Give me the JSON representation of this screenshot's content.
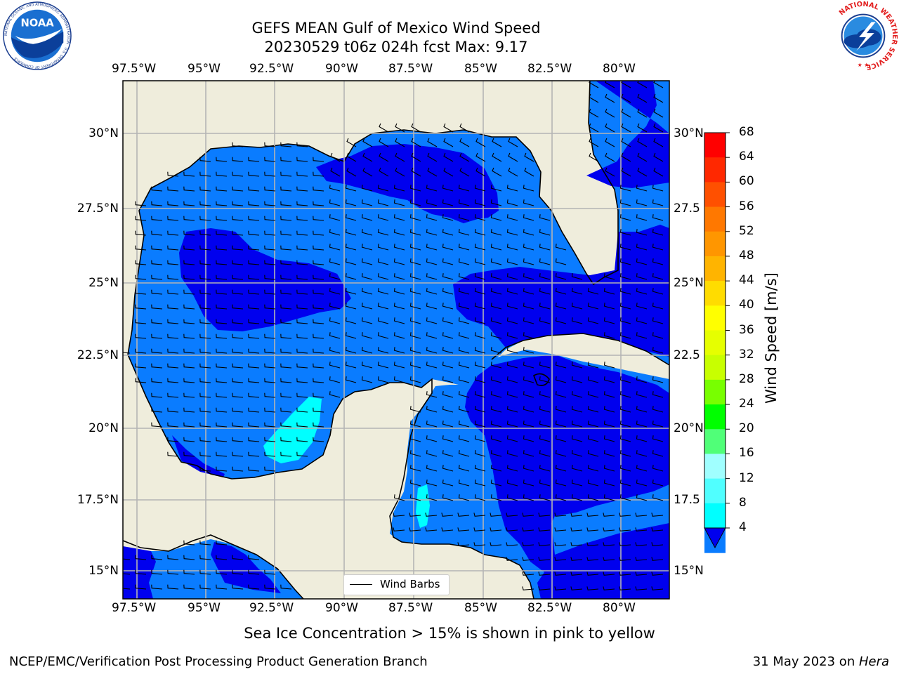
{
  "title": {
    "line1": "GEFS MEAN Gulf of Mexico Wind Speed",
    "line2": "20230529 t06z 024h fcst   Max: 9.17"
  },
  "map": {
    "lon_labels": [
      "97.5°W",
      "95°W",
      "92.5°W",
      "90°W",
      "87.5°W",
      "85°W",
      "82.5°W",
      "80°W"
    ],
    "lat_labels_left": [
      "30°N",
      "27.5°N",
      "25°N",
      "22.5°N",
      "20°N",
      "17.5°N",
      "15°N"
    ],
    "lat_labels_right": [
      "30°N",
      "27.5",
      "25°N",
      "22.5",
      "20°N",
      "17.5",
      "15°N"
    ],
    "land_color": "#efeddc",
    "water_color_4_8": "#0a7cff",
    "water_color_under_4": "#0000ee",
    "water_color_8_12": "#00ffff",
    "legend_label": "Wind Barbs"
  },
  "colorbar": {
    "label": "Wind Speed [m/s]",
    "ticks": [
      "68",
      "64",
      "60",
      "56",
      "52",
      "48",
      "44",
      "40",
      "36",
      "32",
      "28",
      "24",
      "20",
      "16",
      "12",
      "8",
      "4"
    ],
    "colors": [
      "#ff0000",
      "#ff2800",
      "#ff5000",
      "#ff7800",
      "#ff9600",
      "#ffb400",
      "#ffdc00",
      "#ffff00",
      "#e6ff00",
      "#c8ff00",
      "#78ff00",
      "#00ff00",
      "#50ff78",
      "#a0ffff",
      "#50ffff",
      "#00ffff",
      "#0a7cff"
    ],
    "under_color": "#0000ee"
  },
  "note": "Sea Ice Concentration > 15% is shown in pink to yellow",
  "footer": {
    "left": "NCEP/EMC/Verification Post Processing Product Generation Branch",
    "date": "31 May 2023 on ",
    "machine": "Hera"
  },
  "logos": {
    "noaa_text": "NOAA",
    "noaa_ring": "NATIONAL OCEANIC AND ATMOSPHERIC ADMINISTRATION · U.S. DEPARTMENT OF COMMERCE",
    "nws_ring": "NATIONAL WEATHER SERVICE"
  }
}
